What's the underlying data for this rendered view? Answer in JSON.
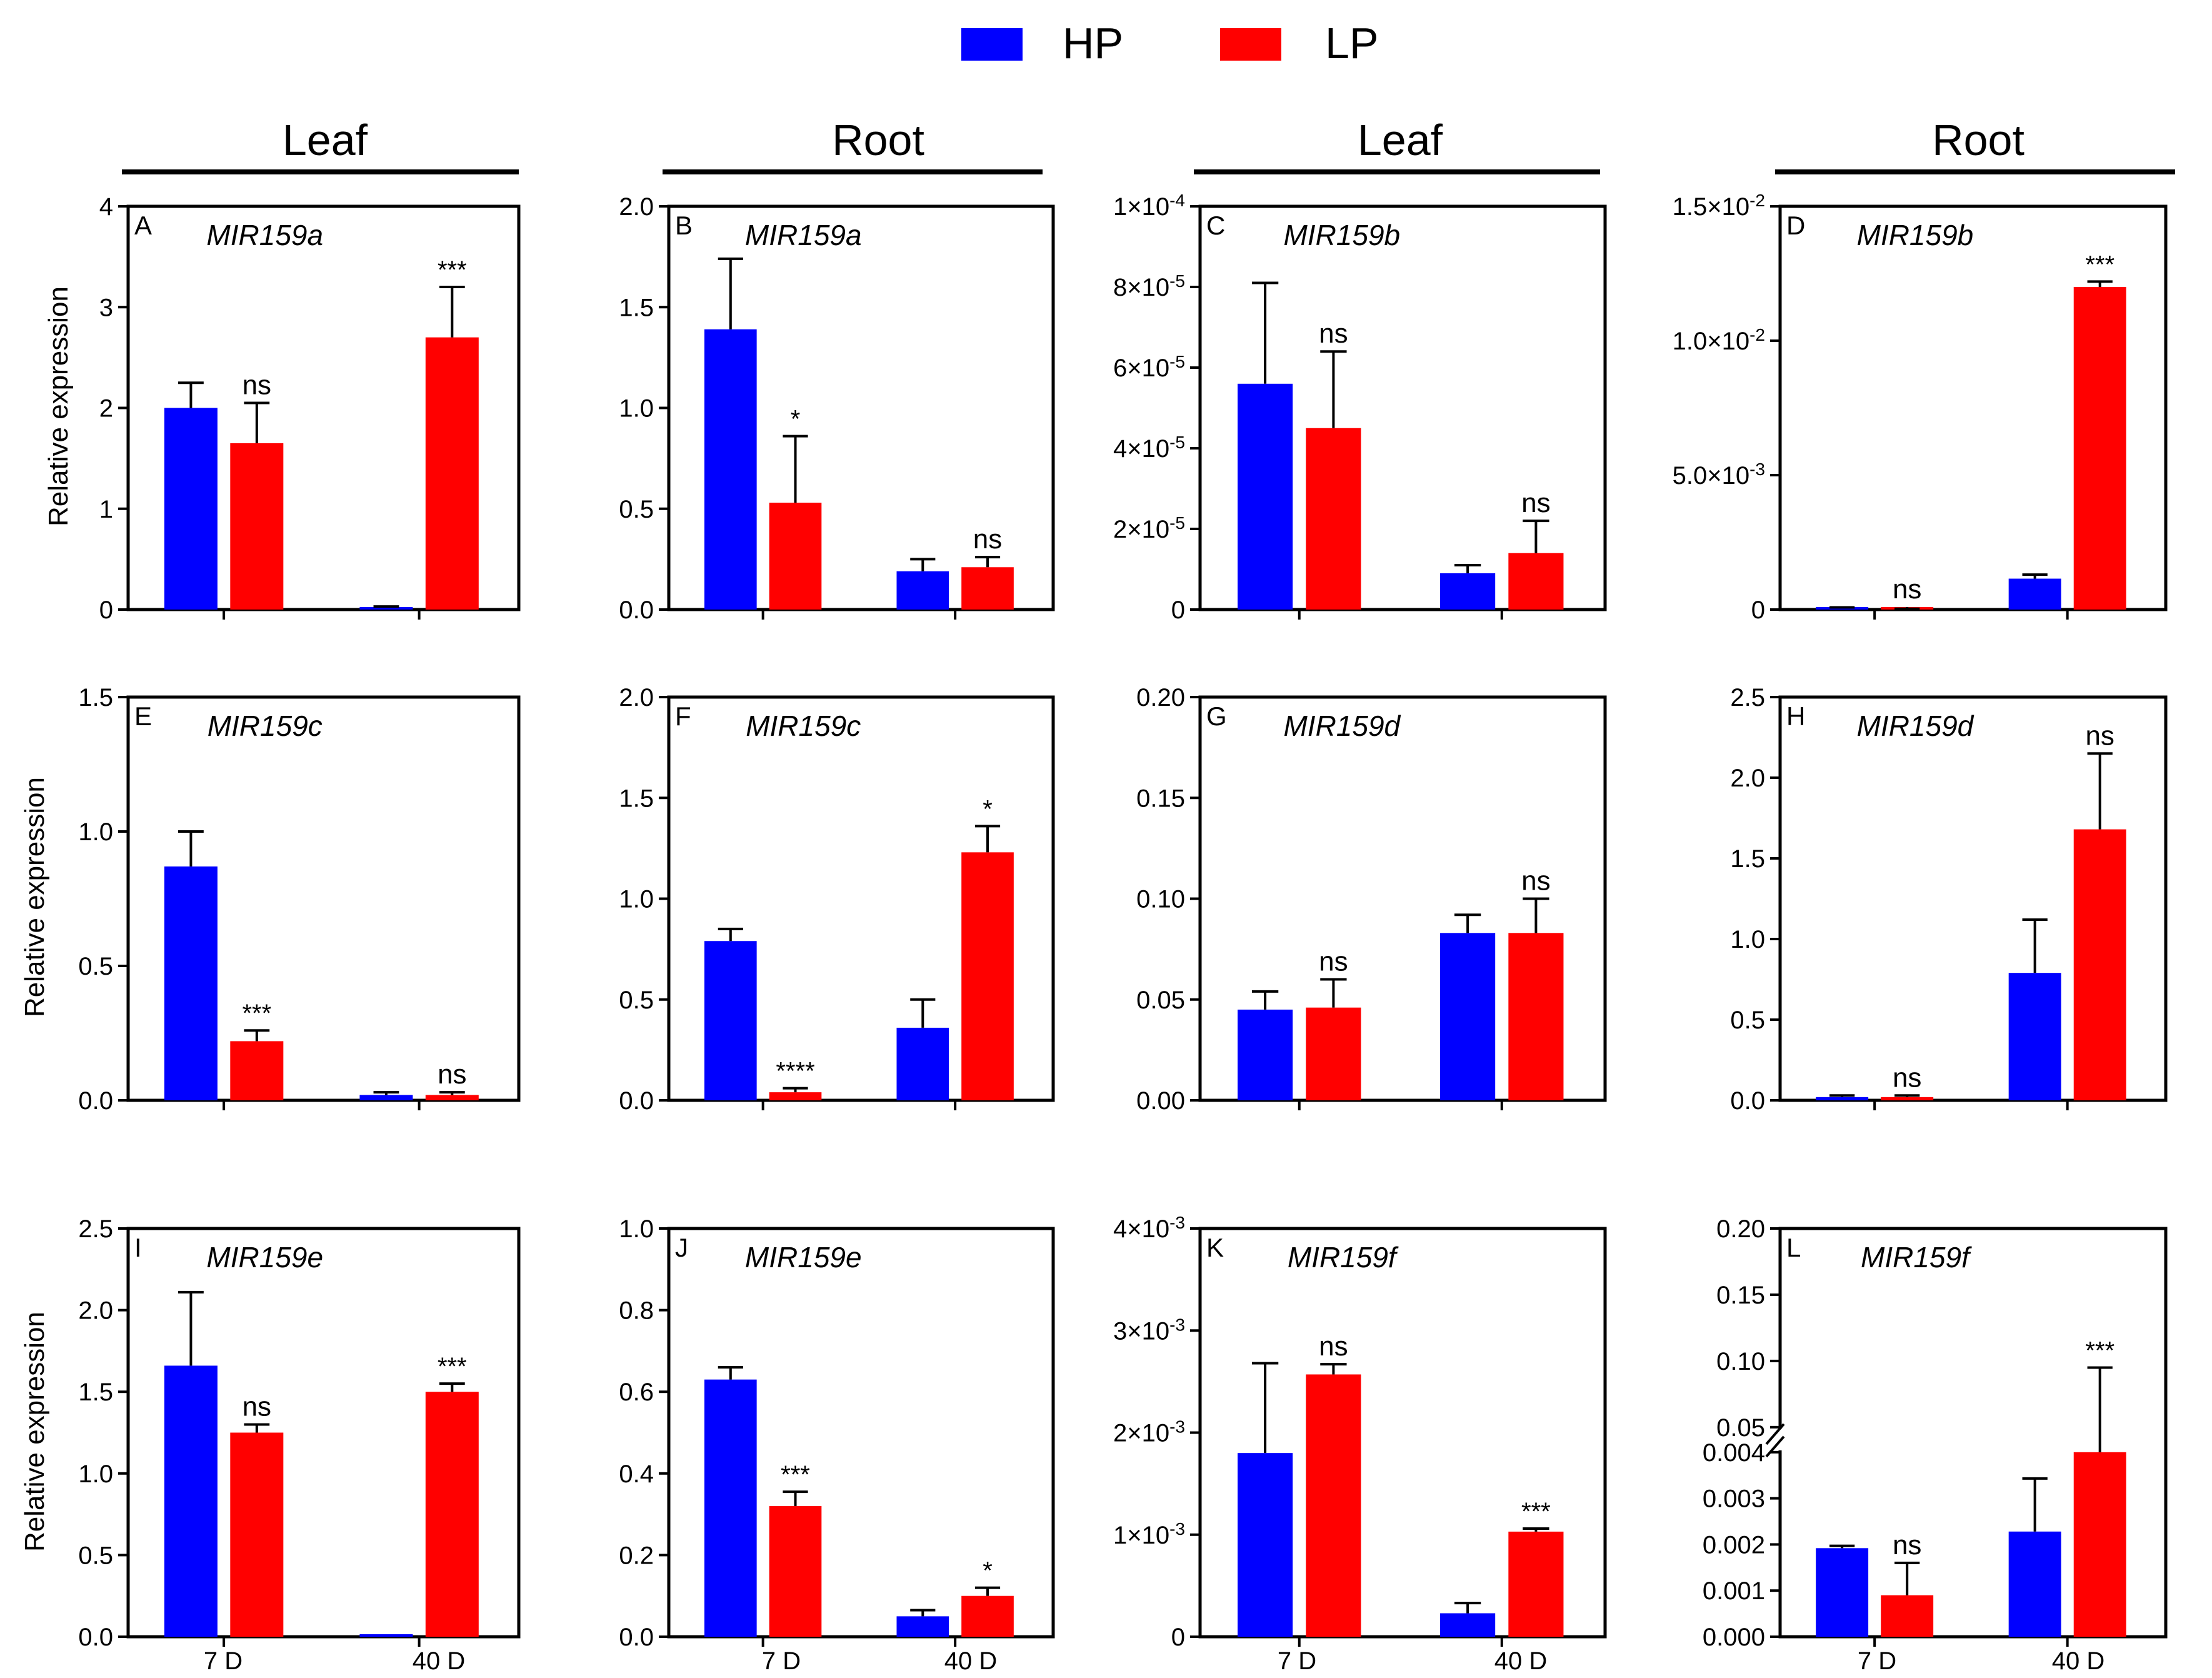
{
  "legend": [
    {
      "label": "HP",
      "color": "#0000FF"
    },
    {
      "label": "LP",
      "color": "#FF0000"
    }
  ],
  "column_headers": [
    "Leaf",
    "Root",
    "Leaf",
    "Root"
  ],
  "y_axis_label": "Relative expression",
  "x_categories": [
    "7 D",
    "40 D"
  ],
  "chart_data": [
    {
      "type": "bar",
      "panel": "A",
      "title": "MIR159a",
      "tissue": "Leaf",
      "ylim": [
        0,
        4
      ],
      "yticks": [
        "0",
        "1",
        "2",
        "3",
        "4"
      ],
      "categories": [
        "7 D",
        "40 D"
      ],
      "series": [
        {
          "name": "HP",
          "values": [
            2.0,
            0.02
          ],
          "errors": [
            0.25,
            0.01
          ]
        },
        {
          "name": "LP",
          "values": [
            1.65,
            2.7
          ],
          "errors": [
            0.4,
            0.5
          ]
        }
      ],
      "significance": [
        "ns",
        "***"
      ]
    },
    {
      "type": "bar",
      "panel": "B",
      "title": "MIR159a",
      "tissue": "Root",
      "ylim": [
        0,
        2
      ],
      "yticks": [
        "0.0",
        "0.5",
        "1.0",
        "1.5",
        "2.0"
      ],
      "categories": [
        "7 D",
        "40 D"
      ],
      "series": [
        {
          "name": "HP",
          "values": [
            1.39,
            0.19
          ],
          "errors": [
            0.35,
            0.06
          ]
        },
        {
          "name": "LP",
          "values": [
            0.53,
            0.21
          ],
          "errors": [
            0.33,
            0.05
          ]
        }
      ],
      "significance": [
        "*",
        "ns"
      ]
    },
    {
      "type": "bar",
      "panel": "C",
      "title": "MIR159b",
      "tissue": "Leaf",
      "ylim": [
        0,
        0.0001
      ],
      "yticks": [
        "0",
        "2×10-5",
        "4×10-5",
        "6×10-5",
        "8×10-5",
        "1×10-4"
      ],
      "categories": [
        "7 D",
        "40 D"
      ],
      "series": [
        {
          "name": "HP",
          "values": [
            5.6e-05,
            9e-06
          ],
          "errors": [
            2.5e-05,
            2e-06
          ]
        },
        {
          "name": "LP",
          "values": [
            4.5e-05,
            1.4e-05
          ],
          "errors": [
            1.9e-05,
            8e-06
          ]
        }
      ],
      "significance": [
        "ns",
        "ns"
      ]
    },
    {
      "type": "bar",
      "panel": "D",
      "title": "MIR159b",
      "tissue": "Root",
      "ylim": [
        0,
        0.015
      ],
      "yticks": [
        "0",
        "5.0×10-3",
        "1.0×10-2",
        "1.5×10-2"
      ],
      "categories": [
        "7 D",
        "40 D"
      ],
      "series": [
        {
          "name": "HP",
          "values": [
            5e-05,
            0.00115
          ],
          "errors": [
            3e-05,
            0.00015
          ]
        },
        {
          "name": "LP",
          "values": [
            2e-05,
            0.012
          ],
          "errors": [
            1e-05,
            0.0002
          ]
        }
      ],
      "significance": [
        "ns",
        "***"
      ]
    },
    {
      "type": "bar",
      "panel": "E",
      "title": "MIR159c",
      "tissue": "Leaf",
      "ylim": [
        0,
        1.5
      ],
      "yticks": [
        "0.0",
        "0.5",
        "1.0",
        "1.5"
      ],
      "categories": [
        "7 D",
        "40 D"
      ],
      "series": [
        {
          "name": "HP",
          "values": [
            0.87,
            0.02
          ],
          "errors": [
            0.13,
            0.01
          ]
        },
        {
          "name": "LP",
          "values": [
            0.22,
            0.02
          ],
          "errors": [
            0.04,
            0.01
          ]
        }
      ],
      "significance": [
        "***",
        "ns"
      ]
    },
    {
      "type": "bar",
      "panel": "F",
      "title": "MIR159c",
      "tissue": "Root",
      "ylim": [
        0,
        2
      ],
      "yticks": [
        "0.0",
        "0.5",
        "1.0",
        "1.5",
        "2.0"
      ],
      "categories": [
        "7 D",
        "40 D"
      ],
      "series": [
        {
          "name": "HP",
          "values": [
            0.79,
            0.36
          ],
          "errors": [
            0.06,
            0.14
          ]
        },
        {
          "name": "LP",
          "values": [
            0.04,
            1.23
          ],
          "errors": [
            0.02,
            0.13
          ]
        }
      ],
      "significance": [
        "****",
        "*"
      ]
    },
    {
      "type": "bar",
      "panel": "G",
      "title": "MIR159d",
      "tissue": "Leaf",
      "ylim": [
        0,
        0.2
      ],
      "yticks": [
        "0.00",
        "0.05",
        "0.10",
        "0.15",
        "0.20"
      ],
      "categories": [
        "7 D",
        "40 D"
      ],
      "series": [
        {
          "name": "HP",
          "values": [
            0.045,
            0.083
          ],
          "errors": [
            0.009,
            0.009
          ]
        },
        {
          "name": "LP",
          "values": [
            0.046,
            0.083
          ],
          "errors": [
            0.014,
            0.017
          ]
        }
      ],
      "significance": [
        "ns",
        "ns"
      ]
    },
    {
      "type": "bar",
      "panel": "H",
      "title": "MIR159d",
      "tissue": "Root",
      "ylim": [
        0,
        2.5
      ],
      "yticks": [
        "0.0",
        "0.5",
        "1.0",
        "1.5",
        "2.0",
        "2.5"
      ],
      "categories": [
        "7 D",
        "40 D"
      ],
      "series": [
        {
          "name": "HP",
          "values": [
            0.02,
            0.79
          ],
          "errors": [
            0.01,
            0.33
          ]
        },
        {
          "name": "LP",
          "values": [
            0.02,
            1.68
          ],
          "errors": [
            0.01,
            0.47
          ]
        }
      ],
      "significance": [
        "ns",
        "ns"
      ]
    },
    {
      "type": "bar",
      "panel": "I",
      "title": "MIR159e",
      "tissue": "Leaf",
      "ylim": [
        0,
        2.5
      ],
      "yticks": [
        "0.0",
        "0.5",
        "1.0",
        "1.5",
        "2.0",
        "2.5"
      ],
      "categories": [
        "7 D",
        "40 D"
      ],
      "series": [
        {
          "name": "HP",
          "values": [
            1.66,
            0.0
          ],
          "errors": [
            0.45,
            0.0
          ]
        },
        {
          "name": "LP",
          "values": [
            1.25,
            1.5
          ],
          "errors": [
            0.05,
            0.05
          ]
        }
      ],
      "significance": [
        "ns",
        "***"
      ]
    },
    {
      "type": "bar",
      "panel": "J",
      "title": "MIR159e",
      "tissue": "Root",
      "ylim": [
        0,
        1
      ],
      "yticks": [
        "0.0",
        "0.2",
        "0.4",
        "0.6",
        "0.8",
        "1.0"
      ],
      "categories": [
        "7 D",
        "40 D"
      ],
      "series": [
        {
          "name": "HP",
          "values": [
            0.63,
            0.05
          ],
          "errors": [
            0.03,
            0.015
          ]
        },
        {
          "name": "LP",
          "values": [
            0.32,
            0.1
          ],
          "errors": [
            0.035,
            0.02
          ]
        }
      ],
      "significance": [
        "***",
        "*"
      ]
    },
    {
      "type": "bar",
      "panel": "K",
      "title": "MIR159f",
      "tissue": "Leaf",
      "ylim": [
        0,
        0.004
      ],
      "yticks": [
        "0",
        "1×10-3",
        "2×10-3",
        "3×10-3",
        "4×10-3"
      ],
      "categories": [
        "7 D",
        "40 D"
      ],
      "series": [
        {
          "name": "HP",
          "values": [
            0.0018,
            0.00023
          ],
          "errors": [
            0.00088,
            0.0001
          ]
        },
        {
          "name": "LP",
          "values": [
            0.00257,
            0.00103
          ],
          "errors": [
            0.0001,
            3e-05
          ]
        }
      ],
      "significance": [
        "ns",
        "***"
      ]
    },
    {
      "type": "bar",
      "panel": "L",
      "title": "MIR159f",
      "tissue": "Root",
      "ylim": [
        0,
        0.2
      ],
      "broken_axis": {
        "lower": [
          0,
          0.004
        ],
        "upper": [
          0.05,
          0.2
        ]
      },
      "yticks": [
        "0.000",
        "0.001",
        "0.002",
        "0.003",
        "0.004",
        "0.05",
        "0.10",
        "0.15",
        "0.20"
      ],
      "categories": [
        "7 D",
        "40 D"
      ],
      "series": [
        {
          "name": "HP",
          "values": [
            0.00192,
            0.00228
          ],
          "errors": [
            5e-05,
            0.00115
          ]
        },
        {
          "name": "LP",
          "values": [
            0.0009,
            0.045
          ],
          "errors": [
            0.0007,
            0.05
          ]
        }
      ],
      "significance": [
        "ns",
        "***"
      ]
    }
  ]
}
